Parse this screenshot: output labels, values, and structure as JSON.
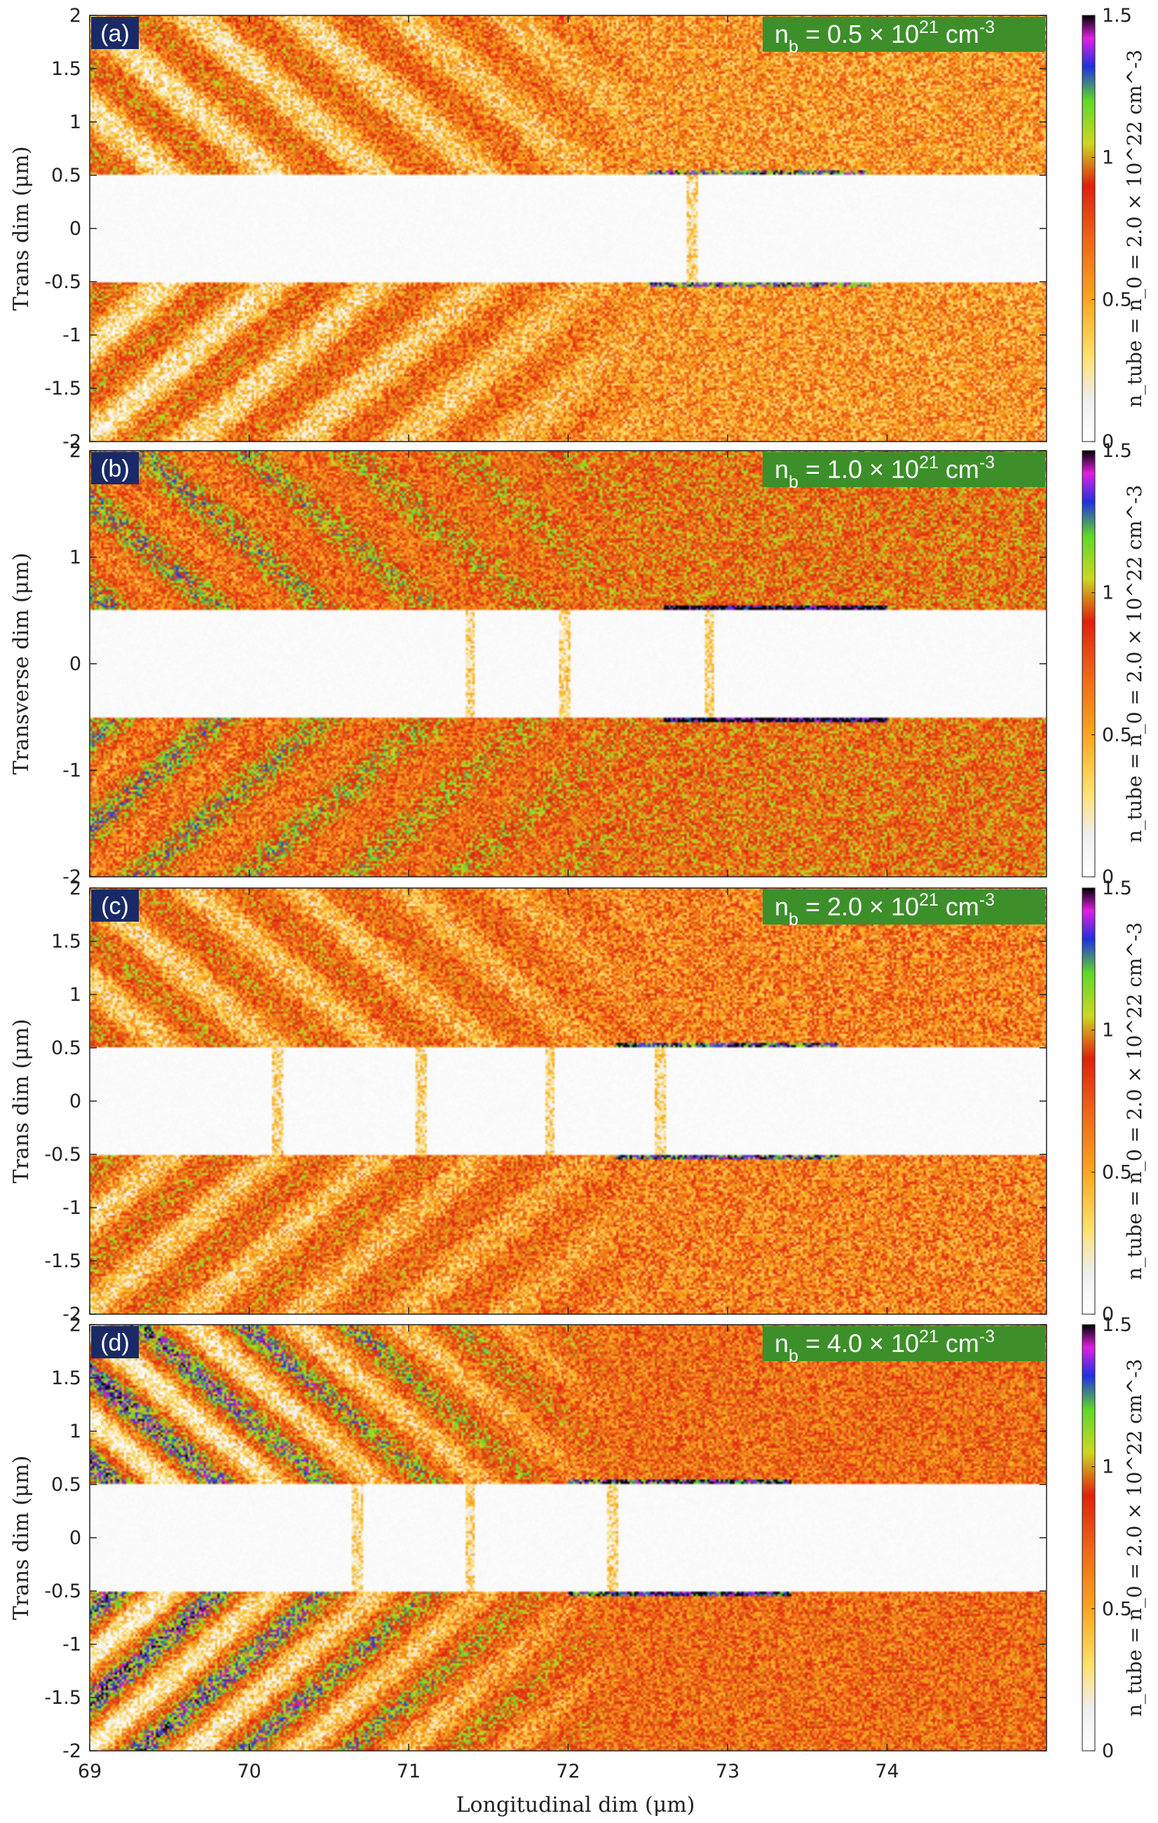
{
  "colors": {
    "tag_bg": "#1a2a66",
    "density_bg": "#3d8f2a",
    "axis": "#222222"
  },
  "x_axis": {
    "label": "Longitudinal dim (μm)",
    "range": [
      69,
      75
    ],
    "ticks": [
      "69",
      "70",
      "71",
      "72",
      "73",
      "74"
    ]
  },
  "colormap_stops": [
    {
      "v": 0.0,
      "c": "#ffffff"
    },
    {
      "v": 0.15,
      "c": "#eeeeee"
    },
    {
      "v": 0.3,
      "c": "#ffe070"
    },
    {
      "v": 0.5,
      "c": "#f7a81c"
    },
    {
      "v": 0.7,
      "c": "#ef6a1a"
    },
    {
      "v": 0.9,
      "c": "#e02010"
    },
    {
      "v": 1.05,
      "c": "#ccd820"
    },
    {
      "v": 1.2,
      "c": "#60d828"
    },
    {
      "v": 1.32,
      "c": "#2030e0"
    },
    {
      "v": 1.42,
      "c": "#e020e0"
    },
    {
      "v": 1.5,
      "c": "#000000"
    }
  ],
  "chart_data": [
    {
      "type": "heatmap",
      "panel_tag": "(a)",
      "density_prefix": "n",
      "density_sub": "b",
      "density_mid": " = 0.5 × 10",
      "density_sup": "21",
      "density_unit": " cm",
      "density_unit_sup": "-3",
      "ylabel": "Trans dim (μm)",
      "y_ticks": [
        "2",
        "1.5",
        "1",
        "0.5",
        "0",
        "-0.5",
        "-1",
        "-1.5",
        "-2"
      ],
      "ylim": [
        -2,
        2
      ],
      "xlim": [
        69,
        75
      ],
      "colorbar_label": "n_tube = n_0 = 2.0 × 10^22 cm^-3",
      "colorbar_ticks": [
        "1.5",
        "1",
        "0.5",
        "0"
      ],
      "colorbar_range": [
        0,
        1.5
      ],
      "tube_half_width": 0.5,
      "background_density": 0.55,
      "wake_end_x": 72.5,
      "bubble_edges_x": [
        72.8
      ],
      "wave_contrast": 0.35
    },
    {
      "type": "heatmap",
      "panel_tag": "(b)",
      "density_prefix": "n",
      "density_sub": "b",
      "density_mid": " = 1.0 × 10",
      "density_sup": "21",
      "density_unit": " cm",
      "density_unit_sup": "-3",
      "ylabel": "Transverse dim (μm)",
      "y_ticks": [
        "2",
        "1",
        "0",
        "-1",
        "-2"
      ],
      "ylim": [
        -2,
        2
      ],
      "xlim": [
        69,
        75
      ],
      "colorbar_label": "n_tube = n_0 = 2.0 × 10^22 cm^-3",
      "colorbar_ticks": [
        "1.5",
        "1",
        "0.5",
        "0"
      ],
      "colorbar_range": [
        0,
        1.5
      ],
      "tube_half_width": 0.5,
      "background_density": 0.85,
      "wake_end_x": 72.5,
      "bubble_edges_x": [
        71.4,
        72.0,
        72.9
      ],
      "wave_contrast": 0.25
    },
    {
      "type": "heatmap",
      "panel_tag": "(c)",
      "density_prefix": "n",
      "density_sub": "b",
      "density_mid": " = 2.0 × 10",
      "density_sup": "21",
      "density_unit": " cm",
      "density_unit_sup": "-3",
      "ylabel": "Trans dim (μm)",
      "y_ticks": [
        "2",
        "1.5",
        "1",
        "0.5",
        "0",
        "-0.5",
        "-1",
        "-1.5",
        "-2"
      ],
      "ylim": [
        -2,
        2
      ],
      "xlim": [
        69,
        75
      ],
      "colorbar_label": "n_tube = n_0 = 2.0 × 10^22 cm^-3",
      "colorbar_ticks": [
        "1.5",
        "1",
        "0.5",
        "0"
      ],
      "colorbar_range": [
        0,
        1.5
      ],
      "tube_half_width": 0.5,
      "background_density": 0.62,
      "wake_end_x": 72.5,
      "bubble_edges_x": [
        70.2,
        71.1,
        71.9,
        72.6
      ],
      "wave_contrast": 0.3
    },
    {
      "type": "heatmap",
      "panel_tag": "(d)",
      "density_prefix": "n",
      "density_sub": "b",
      "density_mid": " = 4.0 × 10",
      "density_sup": "21",
      "density_unit": " cm",
      "density_unit_sup": "-3",
      "ylabel": "Trans dim (μm)",
      "y_ticks": [
        "2",
        "1.5",
        "1",
        "0.5",
        "0",
        "-0.5",
        "-1",
        "-1.5",
        "-2"
      ],
      "ylim": [
        -2,
        2
      ],
      "xlim": [
        69,
        75
      ],
      "colorbar_label": "n_tube = n_0 = 2.0 × 10^22 cm^-3",
      "colorbar_ticks": [
        "1.5",
        "1",
        "0.5",
        "0"
      ],
      "colorbar_range": [
        0,
        1.5
      ],
      "tube_half_width": 0.5,
      "background_density": 0.72,
      "wake_end_x": 72.3,
      "bubble_edges_x": [
        70.7,
        71.4,
        72.3
      ],
      "wave_contrast": 0.6
    }
  ]
}
